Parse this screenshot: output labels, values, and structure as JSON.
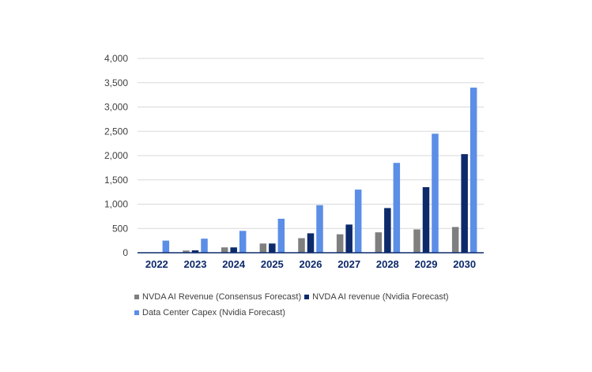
{
  "chart_data": {
    "type": "bar",
    "title": "",
    "xlabel": "",
    "ylabel": "",
    "ylim": [
      0,
      4000
    ],
    "yticks": [
      "0",
      "500",
      "1,000",
      "1,500",
      "2,000",
      "2,500",
      "3,000",
      "3,500",
      "4,000"
    ],
    "ytick_values": [
      0,
      500,
      1000,
      1500,
      2000,
      2500,
      3000,
      3500,
      4000
    ],
    "grid": "horizontal",
    "legend_position": "bottom",
    "categories": [
      "2022",
      "2023",
      "2024",
      "2025",
      "2026",
      "2027",
      "2028",
      "2029",
      "2030"
    ],
    "series": [
      {
        "name": "NVDA AI Revenue (Consensus Forecast)",
        "color": "#7f7f7f",
        "values": [
          0,
          45,
          110,
          190,
          300,
          380,
          420,
          480,
          530
        ]
      },
      {
        "name": "NVDA AI revenue (Nvidia Forecast)",
        "color": "#0d2a6b",
        "values": [
          0,
          50,
          110,
          190,
          400,
          580,
          920,
          1350,
          2030
        ]
      },
      {
        "name": "Data Center Capex (Nvidia Forecast)",
        "color": "#5b8ee6",
        "values": [
          250,
          290,
          450,
          700,
          980,
          1300,
          1850,
          2450,
          3400
        ]
      }
    ]
  }
}
